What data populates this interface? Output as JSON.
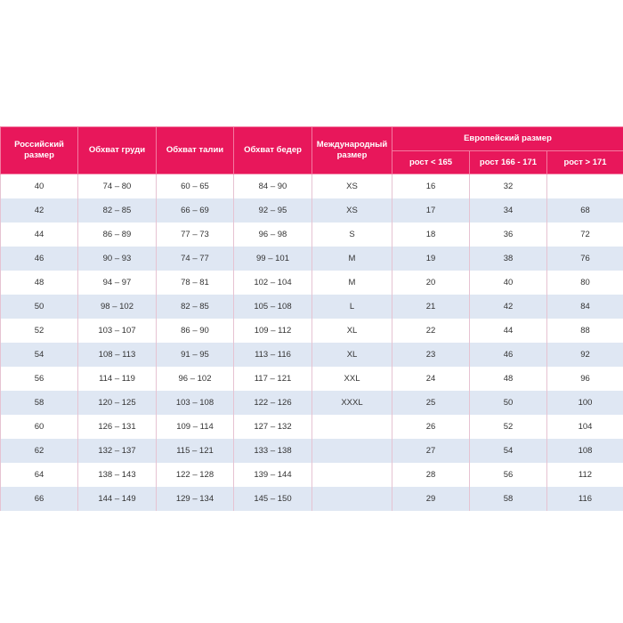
{
  "table": {
    "header": {
      "ru": "Российский размер",
      "chest": "Обхват груди",
      "waist": "Обхват талии",
      "hips": "Обхват бедер",
      "intl": "Международный размер",
      "eu": "Европейский размер",
      "eu_sub": [
        "рост < 165",
        "рост 166 - 171",
        "рост > 171"
      ]
    },
    "rows": [
      [
        "40",
        "74 – 80",
        "60 – 65",
        "84 – 90",
        "XS",
        "16",
        "32",
        null
      ],
      [
        "42",
        "82 – 85",
        "66 – 69",
        "92 – 95",
        "XS",
        "17",
        "34",
        "68"
      ],
      [
        "44",
        "86 – 89",
        "77 – 73",
        "96 – 98",
        "S",
        "18",
        "36",
        "72"
      ],
      [
        "46",
        "90 – 93",
        "74 – 77",
        "99 – 101",
        "M",
        "19",
        "38",
        "76"
      ],
      [
        "48",
        "94 – 97",
        "78 – 81",
        "102 – 104",
        "M",
        "20",
        "40",
        "80"
      ],
      [
        "50",
        "98 – 102",
        "82 – 85",
        "105 – 108",
        "L",
        "21",
        "42",
        "84"
      ],
      [
        "52",
        "103 – 107",
        "86 – 90",
        "109 – 112",
        "XL",
        "22",
        "44",
        "88"
      ],
      [
        "54",
        "108 – 113",
        "91 – 95",
        "113 – 116",
        "XL",
        "23",
        "46",
        "92"
      ],
      [
        "56",
        "114 – 119",
        "96 – 102",
        "117 – 121",
        "XXL",
        "24",
        "48",
        "96"
      ],
      [
        "58",
        "120 – 125",
        "103 – 108",
        "122 – 126",
        "XXXL",
        "25",
        "50",
        "100"
      ],
      [
        "60",
        "126 – 131",
        "109 – 114",
        "127 – 132",
        null,
        "26",
        "52",
        "104"
      ],
      [
        "62",
        "132 – 137",
        "115 – 121",
        "133 – 138",
        null,
        "27",
        "54",
        "108"
      ],
      [
        "64",
        "138 – 143",
        "122 – 128",
        "139 – 144",
        null,
        "28",
        "56",
        "112"
      ],
      [
        "66",
        "144 – 149",
        "129 – 134",
        "145 – 150",
        null,
        "29",
        "58",
        "116"
      ]
    ]
  }
}
